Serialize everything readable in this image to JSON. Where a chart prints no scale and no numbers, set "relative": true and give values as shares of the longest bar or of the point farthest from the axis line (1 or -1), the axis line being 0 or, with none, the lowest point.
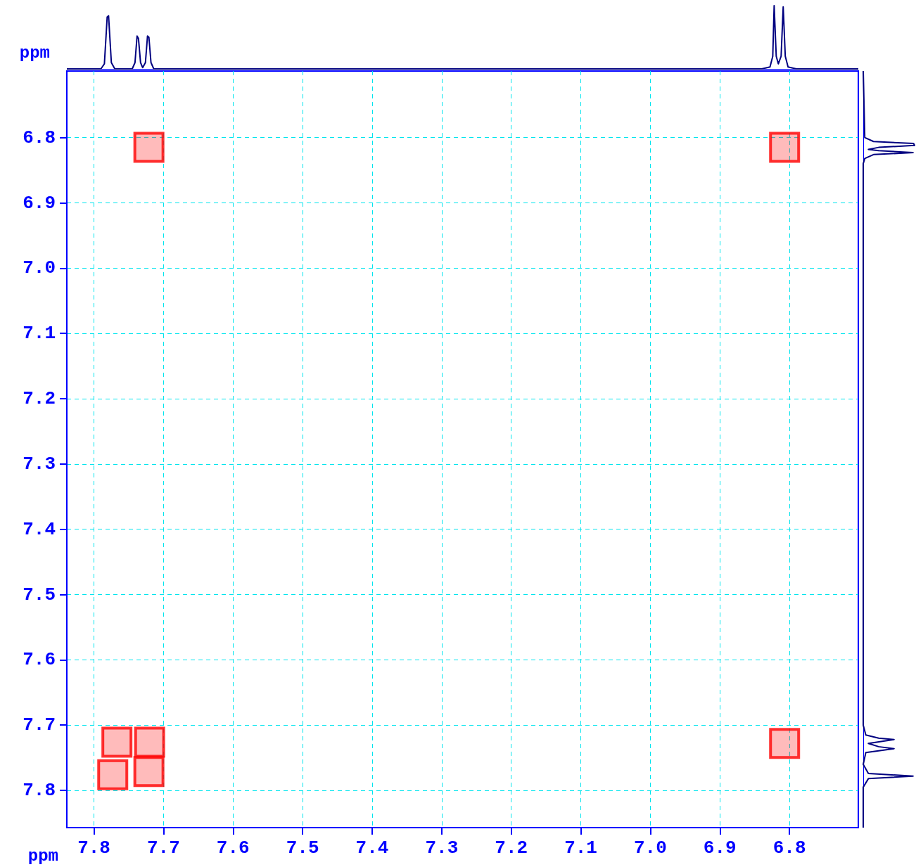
{
  "chart_data": [
    {
      "type": "line",
      "relative": true,
      "color": "#000080",
      "xlim": [
        7.839,
        6.701
      ],
      "marker": "none",
      "x": [
        7.839,
        7.79,
        7.785,
        7.781,
        7.779,
        7.775,
        7.77,
        7.745,
        7.741,
        7.738,
        7.736,
        7.733,
        7.73,
        7.726,
        7.723,
        7.721,
        7.718,
        7.714,
        7.7,
        6.84,
        6.828,
        6.824,
        6.822,
        6.819,
        6.816,
        6.812,
        6.809,
        6.806,
        6.802,
        6.79,
        6.701
      ],
      "values": [
        0,
        0,
        0.08,
        0.82,
        0.84,
        0.1,
        0,
        0,
        0.1,
        0.52,
        0.48,
        0.1,
        0.02,
        0.1,
        0.52,
        0.5,
        0.1,
        0,
        0,
        0,
        0.03,
        0.2,
        1,
        0.2,
        0.08,
        0.2,
        0.98,
        0.2,
        0.03,
        0,
        0
      ]
    },
    {
      "type": "scatter",
      "xlabel": "ppm",
      "ylabel": "ppm",
      "color": "#ff0000",
      "marker": "square",
      "grid": true,
      "xlim": [
        7.839,
        6.701
      ],
      "ylim": [
        7.857,
        6.698
      ],
      "xticks": [
        7.8,
        7.7,
        7.6,
        7.5,
        7.4,
        7.3,
        7.2,
        7.1,
        {
          "value": 7,
          "label": "7.0"
        },
        6.9,
        6.8
      ],
      "yticks": [
        6.8,
        6.9,
        {
          "value": 7,
          "label": "7.0"
        },
        7.1,
        7.2,
        7.3,
        7.4,
        7.5,
        7.6,
        7.7,
        7.8
      ],
      "x": [
        7.721,
        6.807,
        7.72,
        6.807,
        7.773,
        7.767,
        7.721
      ],
      "values": [
        6.815,
        6.815,
        7.726,
        7.728,
        7.776,
        7.726,
        7.771
      ]
    },
    {
      "type": "line",
      "relative": true,
      "orientation": "horizontal",
      "color": "#000080",
      "ylim": [
        7.857,
        6.698
      ],
      "marker": "none",
      "x": [
        6.698,
        6.8,
        6.806,
        6.809,
        6.812,
        6.815,
        6.818,
        6.82,
        6.823,
        6.826,
        6.832,
        6.84,
        7.7,
        7.715,
        7.72,
        7.722,
        7.728,
        7.733,
        7.736,
        7.742,
        7.76,
        7.774,
        7.778,
        7.782,
        7.795,
        7.857
      ],
      "values": [
        0,
        0.03,
        0.2,
        0.98,
        1,
        0.3,
        0.1,
        0.3,
        0.97,
        0.2,
        0.03,
        0,
        0,
        0.05,
        0.3,
        0.6,
        0.1,
        0.3,
        0.6,
        0.05,
        0,
        0.1,
        0.97,
        0.1,
        0,
        0
      ]
    }
  ]
}
